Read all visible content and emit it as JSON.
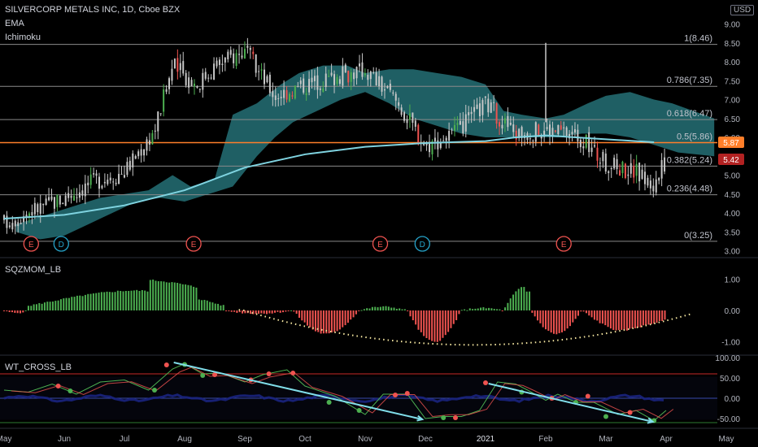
{
  "header": {
    "title": "SILVERCORP METALS INC, 1D, Cboe BZX",
    "indicator_1": "EMA",
    "indicator_2": "Ichimoku",
    "currency": "USD"
  },
  "price_badges": {
    "orange": "5.87",
    "red": "5.42"
  },
  "colors": {
    "background": "#000000",
    "up": "#4caf50",
    "down": "#ef5350",
    "candle": "#c8c8c8",
    "ema": "#7fd3e0",
    "cloud": "#2a7f85",
    "fib_line": "#8a8a8a",
    "orange": "#ff7f2a",
    "red_badge": "#b22222"
  },
  "chart_data": [
    {
      "type": "candlestick",
      "title": "SILVERCORP METALS INC, 1D, Cboe BZX",
      "y_ticks": [
        "9.00",
        "8.50",
        "8.00",
        "7.50",
        "7.00",
        "6.50",
        "6.00",
        "5.50",
        "5.00",
        "4.50",
        "4.00",
        "3.50",
        "3.00"
      ],
      "ylim": [
        3.0,
        9.0
      ],
      "x_ticks": [
        "May",
        "Jun",
        "Jul",
        "Aug",
        "Sep",
        "Oct",
        "Nov",
        "Dec",
        "2021",
        "Feb",
        "Mar",
        "Apr",
        "May"
      ],
      "close_points": [
        {
          "x": 0.0,
          "y": 3.75
        },
        {
          "x": 0.5,
          "y": 4.1
        },
        {
          "x": 1.0,
          "y": 4.4
        },
        {
          "x": 1.5,
          "y": 4.85
        },
        {
          "x": 2.0,
          "y": 5.1
        },
        {
          "x": 2.5,
          "y": 6.2
        },
        {
          "x": 2.8,
          "y": 7.9
        },
        {
          "x": 3.2,
          "y": 7.4
        },
        {
          "x": 3.5,
          "y": 7.9
        },
        {
          "x": 4.0,
          "y": 8.3
        },
        {
          "x": 4.5,
          "y": 7.1
        },
        {
          "x": 5.0,
          "y": 7.4
        },
        {
          "x": 5.5,
          "y": 7.6
        },
        {
          "x": 6.0,
          "y": 7.8
        },
        {
          "x": 6.5,
          "y": 7.0
        },
        {
          "x": 7.0,
          "y": 5.8
        },
        {
          "x": 7.5,
          "y": 6.1
        },
        {
          "x": 8.0,
          "y": 6.9
        },
        {
          "x": 8.5,
          "y": 6.1
        },
        {
          "x": 9.0,
          "y": 6.2
        },
        {
          "x": 9.5,
          "y": 6.1
        },
        {
          "x": 10.0,
          "y": 5.3
        },
        {
          "x": 10.5,
          "y": 5.1
        },
        {
          "x": 10.8,
          "y": 4.7
        },
        {
          "x": 11.0,
          "y": 5.42
        }
      ],
      "ema": [
        {
          "x": 0.0,
          "y": 3.85
        },
        {
          "x": 1.0,
          "y": 3.95
        },
        {
          "x": 2.0,
          "y": 4.2
        },
        {
          "x": 3.0,
          "y": 4.6
        },
        {
          "x": 4.0,
          "y": 5.2
        },
        {
          "x": 5.0,
          "y": 5.55
        },
        {
          "x": 6.0,
          "y": 5.75
        },
        {
          "x": 7.0,
          "y": 5.85
        },
        {
          "x": 8.0,
          "y": 5.9
        },
        {
          "x": 8.5,
          "y": 6.0
        },
        {
          "x": 9.0,
          "y": 6.05
        },
        {
          "x": 10.0,
          "y": 5.95
        },
        {
          "x": 10.8,
          "y": 5.87
        }
      ],
      "fib_levels": [
        {
          "label": "1(8.46)",
          "value": 8.46
        },
        {
          "label": "0.786(7.35)",
          "value": 7.35
        },
        {
          "label": "0.618(6.47)",
          "value": 6.47
        },
        {
          "label": "0.5(5.86)",
          "value": 5.86
        },
        {
          "label": "0.382(5.24)",
          "value": 5.24
        },
        {
          "label": "0.236(4.48)",
          "value": 4.48
        },
        {
          "label": "0(3.25)",
          "value": 3.25
        }
      ],
      "events": [
        {
          "x": 0.45,
          "label": "E",
          "kind": "earnings"
        },
        {
          "x": 0.95,
          "label": "D",
          "kind": "dividend"
        },
        {
          "x": 3.15,
          "label": "E",
          "kind": "earnings"
        },
        {
          "x": 6.25,
          "label": "E",
          "kind": "earnings"
        },
        {
          "x": 6.95,
          "label": "D",
          "kind": "dividend"
        },
        {
          "x": 9.3,
          "label": "E",
          "kind": "earnings"
        }
      ]
    },
    {
      "type": "bar",
      "title": "SQZMOM_LB",
      "y_ticks": [
        "1.00",
        "0.00",
        "-1.00"
      ],
      "ylim": [
        -1.1,
        1.35
      ]
    },
    {
      "type": "line",
      "title": "WT_CROSS_LB",
      "y_ticks": [
        "100.00",
        "50.00",
        "0.00",
        "-50.00"
      ],
      "ylim": [
        -62,
        105
      ]
    }
  ]
}
